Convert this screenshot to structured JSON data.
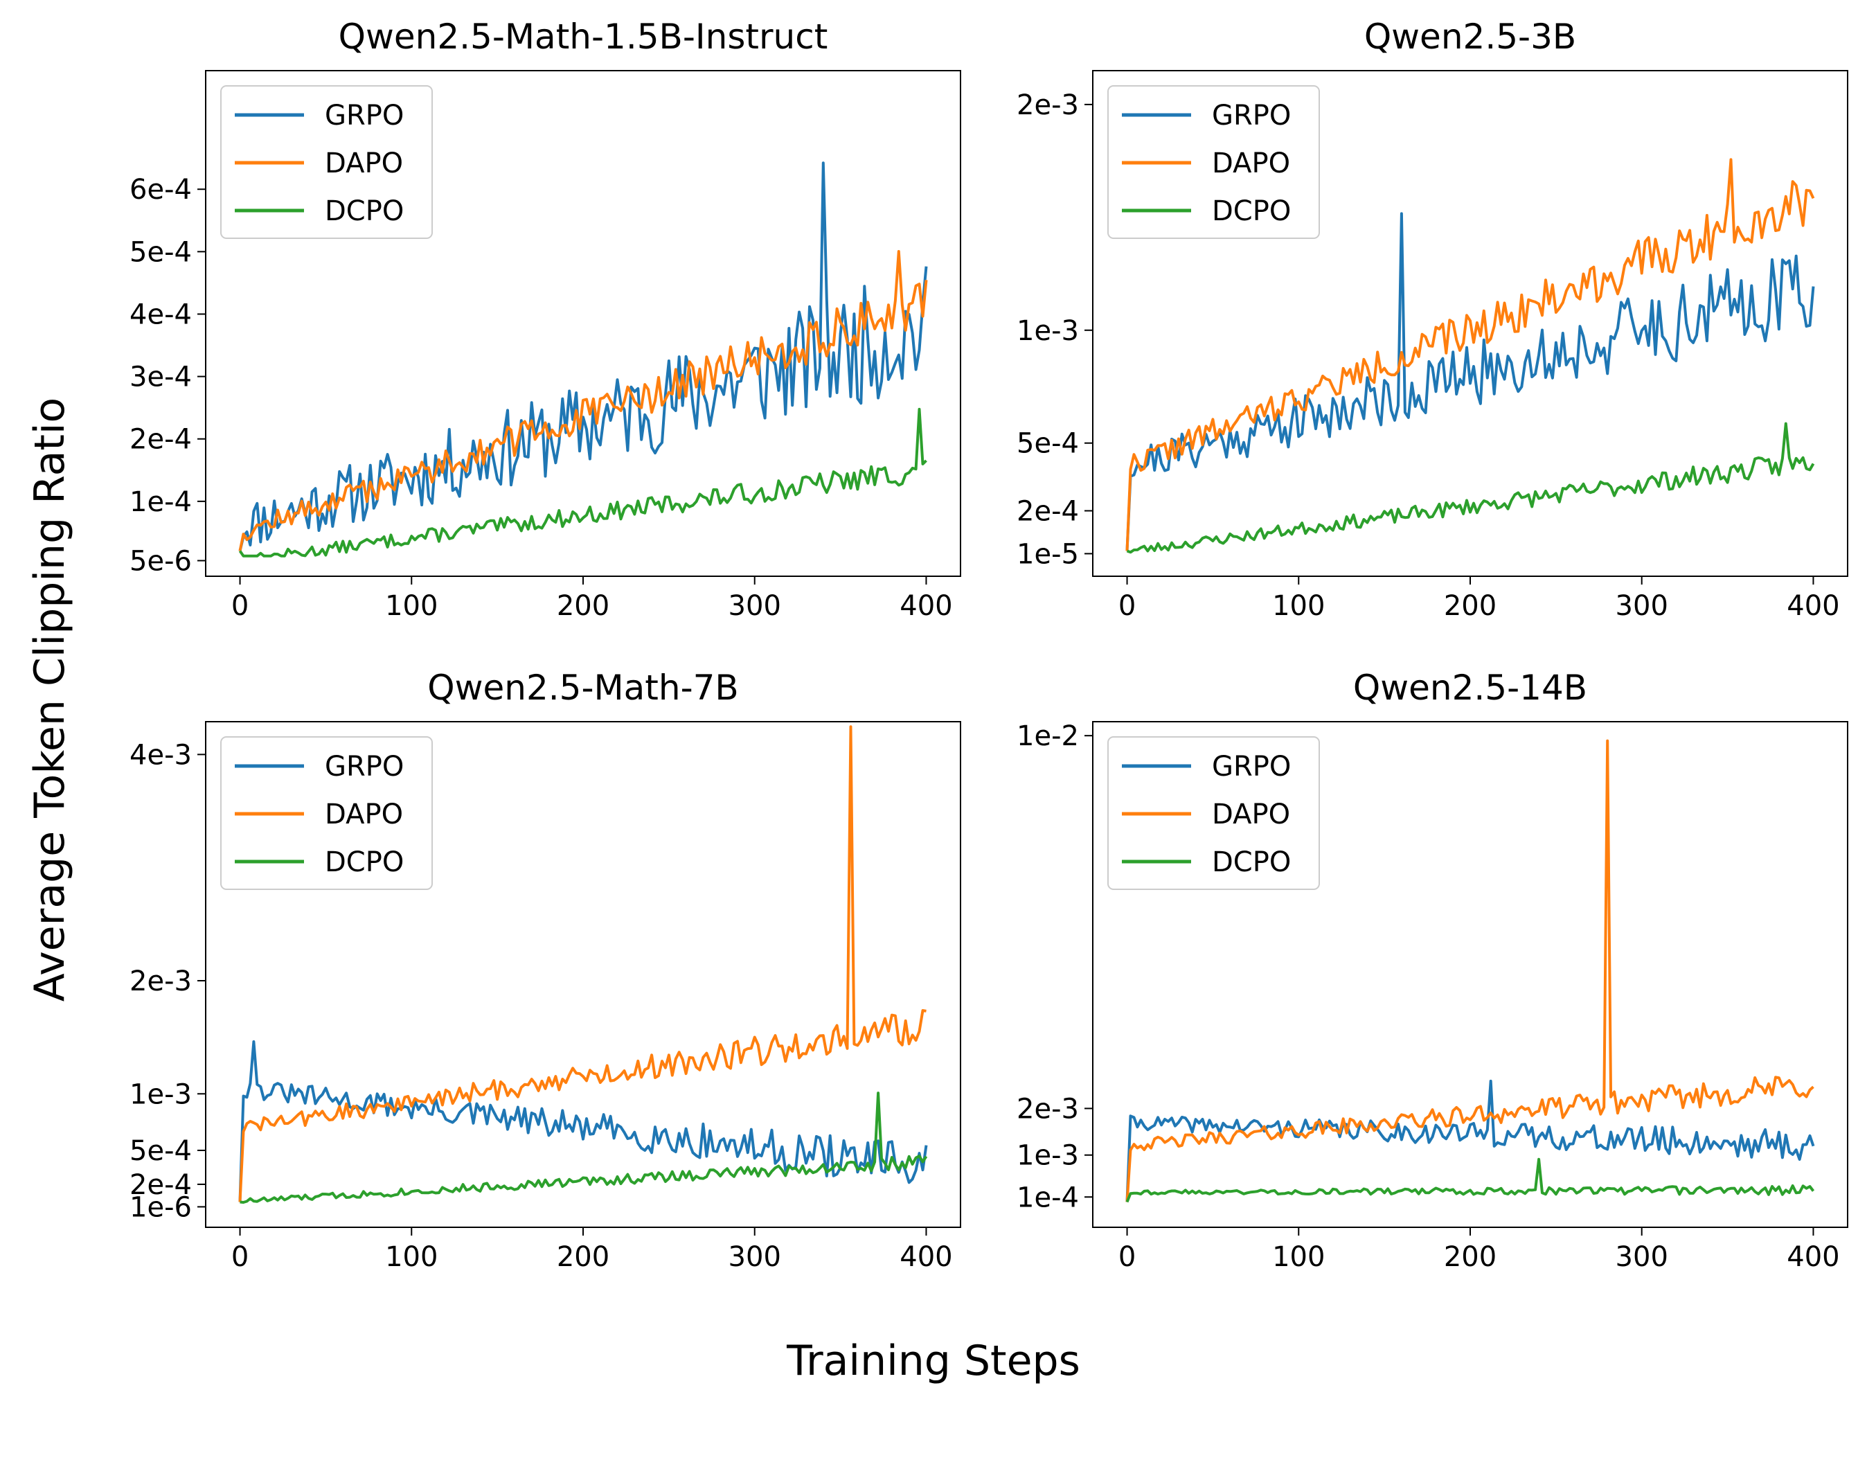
{
  "figure": {
    "ylabel": "Average Token Clipping Ratio",
    "xlabel": "Training Steps"
  },
  "colors": {
    "GRPO": "#1f77b4",
    "DAPO": "#ff7f0e",
    "DCPO": "#2ca02c"
  },
  "chart_data": [
    {
      "type": "line",
      "title": "Qwen2.5-Math-1.5B-Instruct",
      "xlabel": "",
      "ylabel": "",
      "xlim": [
        -20,
        420
      ],
      "ylim": [
        -2e-05,
        0.00079
      ],
      "xticks": [
        0,
        100,
        200,
        300,
        400
      ],
      "xtick_labels": [
        "0",
        "100",
        "200",
        "300",
        "400"
      ],
      "yticks": [
        5e-06,
        0.0001,
        0.0002,
        0.0003,
        0.0004,
        0.0005,
        0.0006
      ],
      "ytick_labels": [
        "5e-6",
        "1e-4",
        "2e-4",
        "3e-4",
        "4e-4",
        "5e-4",
        "6e-4"
      ],
      "legend": "top-left",
      "x": [
        0,
        400
      ],
      "series": [
        {
          "name": "GRPO",
          "start": 6e-05,
          "end": 0.00038,
          "noise": 0.0001,
          "spike": 0.00035,
          "spikeAt": 0.85,
          "seed": 11
        },
        {
          "name": "DAPO",
          "start": 5e-05,
          "end": 0.00042,
          "noise": 4e-05,
          "spike": 0.00012,
          "spikeAt": 0.96,
          "seed": 12
        },
        {
          "name": "DCPO",
          "start": 5e-06,
          "end": 0.00015,
          "noise": 2e-05,
          "spike": 0.0001,
          "spikeAt": 0.99,
          "seed": 13
        }
      ]
    },
    {
      "type": "line",
      "title": "Qwen2.5-3B",
      "xlabel": "",
      "ylabel": "",
      "xlim": [
        -20,
        420
      ],
      "ylim": [
        -9e-05,
        0.00215
      ],
      "xticks": [
        0,
        100,
        200,
        300,
        400
      ],
      "xtick_labels": [
        "0",
        "100",
        "200",
        "300",
        "400"
      ],
      "yticks": [
        1e-05,
        0.0002,
        0.0005,
        0.001,
        0.002
      ],
      "ytick_labels": [
        "1e-5",
        "2e-4",
        "5e-4",
        "1e-3",
        "2e-3"
      ],
      "legend": "top-left",
      "x": [
        0,
        400
      ],
      "series": [
        {
          "name": "GRPO",
          "start": 0.0004,
          "end": 0.0012,
          "noise": 0.0002,
          "spike": 0.0007,
          "spikeAt": 0.4,
          "seed": 21
        },
        {
          "name": "DAPO",
          "start": 0.0004,
          "end": 0.0016,
          "noise": 0.00012,
          "spike": 0.0004,
          "spikeAt": 0.88,
          "seed": 22
        },
        {
          "name": "DCPO",
          "start": 2e-05,
          "end": 0.00042,
          "noise": 5e-05,
          "spike": 0.00018,
          "spikeAt": 0.96,
          "seed": 23
        }
      ]
    },
    {
      "type": "line",
      "title": "Qwen2.5-Math-7B",
      "xlabel": "",
      "ylabel": "",
      "xlim": [
        -20,
        420
      ],
      "ylim": [
        -0.00018,
        0.00429
      ],
      "xticks": [
        0,
        100,
        200,
        300,
        400
      ],
      "xtick_labels": [
        "0",
        "100",
        "200",
        "300",
        "400"
      ],
      "yticks": [
        1e-06,
        0.0002,
        0.0005,
        0.001,
        0.002,
        0.004
      ],
      "ytick_labels": [
        "1e-6",
        "2e-4",
        "5e-4",
        "1e-3",
        "2e-3",
        "4e-3"
      ],
      "legend": "top-left",
      "x": [
        0,
        400
      ],
      "series": [
        {
          "name": "GRPO",
          "start": 0.00105,
          "end": 0.00035,
          "noise": 0.0002,
          "spike": 0.0005,
          "spikeAt": 0.02,
          "seed": 31
        },
        {
          "name": "DAPO",
          "start": 0.0007,
          "end": 0.0016,
          "noise": 0.00015,
          "spike": 0.0027,
          "spikeAt": 0.89,
          "seed": 32
        },
        {
          "name": "DCPO",
          "start": 5e-05,
          "end": 0.0004,
          "noise": 6e-05,
          "spike": 0.0006,
          "spikeAt": 0.93,
          "seed": 33
        }
      ]
    },
    {
      "type": "line",
      "title": "Qwen2.5-14B",
      "xlabel": "",
      "ylabel": "",
      "xlim": [
        -20,
        420
      ],
      "ylim": [
        -0.00055,
        0.0103
      ],
      "xticks": [
        0,
        100,
        200,
        300,
        400
      ],
      "xtick_labels": [
        "0",
        "100",
        "200",
        "300",
        "400"
      ],
      "yticks": [
        0.0001,
        0.001,
        0.002,
        0.01
      ],
      "ytick_labels": [
        "1e-4",
        "1e-3",
        "2e-3",
        "1e-2"
      ],
      "legend": "top-left",
      "x": [
        0,
        400
      ],
      "series": [
        {
          "name": "GRPO",
          "start": 0.0017,
          "end": 0.0012,
          "noise": 0.00035,
          "spike": 0.0013,
          "spikeAt": 0.53,
          "seed": 41
        },
        {
          "name": "DAPO",
          "start": 0.0012,
          "end": 0.0025,
          "noise": 0.0003,
          "spike": 0.0078,
          "spikeAt": 0.7,
          "seed": 42
        },
        {
          "name": "DCPO",
          "start": 0.0002,
          "end": 0.00025,
          "noise": 0.0001,
          "spike": 0.0007,
          "spikeAt": 0.6,
          "seed": 43
        }
      ]
    }
  ]
}
